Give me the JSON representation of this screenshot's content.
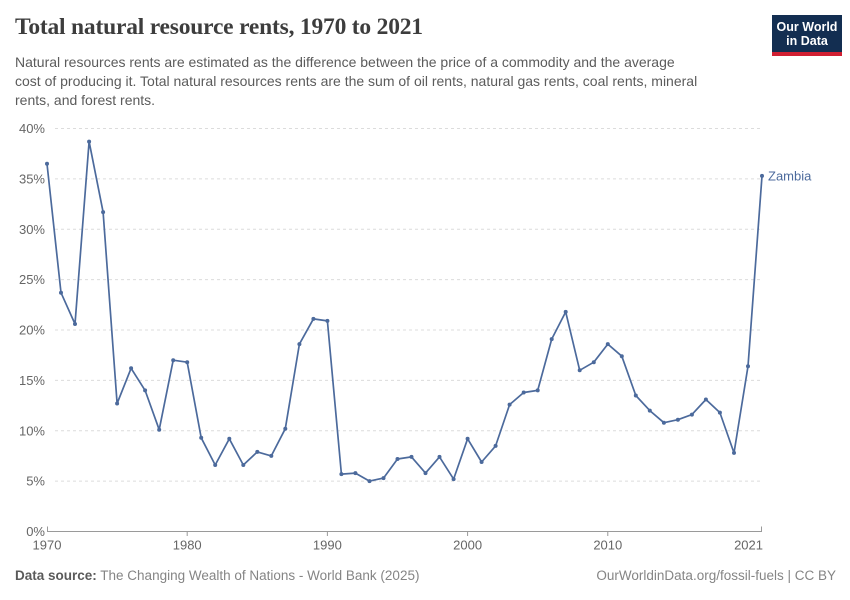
{
  "header": {
    "title": "Total natural resource rents, 1970 to 2021",
    "subtitle": "Natural resources rents are estimated as the difference between the price of a commodity and the average cost of producing it. Total natural resources rents are the sum of oil rents, natural gas rents, coal rents, mineral rents, and forest rents.",
    "subtitle_lines": [
      "Natural resources rents are estimated as the difference between the price of a commodity and the average",
      "cost of producing it. Total natural resources rents are the sum of oil rents, natural gas rents, coal rents, mineral",
      "rents, and forest rents."
    ]
  },
  "logo": {
    "line1": "Our World",
    "line2": "in Data"
  },
  "chart_data": {
    "type": "line",
    "title": "Total natural resource rents, 1970 to 2021",
    "xlabel": "",
    "ylabel": "",
    "ylim": [
      0,
      40
    ],
    "xlim": [
      1970,
      2021
    ],
    "grid": "horizontal-dashed",
    "legend_position": "end-of-line-label",
    "x": [
      1970,
      1971,
      1972,
      1973,
      1974,
      1975,
      1976,
      1977,
      1978,
      1979,
      1980,
      1981,
      1982,
      1983,
      1984,
      1985,
      1986,
      1987,
      1988,
      1989,
      1990,
      1991,
      1992,
      1993,
      1994,
      1995,
      1996,
      1997,
      1998,
      1999,
      2000,
      2001,
      2002,
      2003,
      2004,
      2005,
      2006,
      2007,
      2008,
      2009,
      2010,
      2011,
      2012,
      2013,
      2014,
      2015,
      2016,
      2017,
      2018,
      2019,
      2020,
      2021
    ],
    "series": [
      {
        "name": "Zambia",
        "color": "#4c6a9c",
        "unit": "%",
        "values": [
          36.5,
          23.7,
          20.6,
          38.7,
          31.7,
          12.7,
          16.2,
          14.0,
          10.1,
          17.0,
          16.8,
          9.3,
          6.6,
          9.2,
          6.6,
          7.9,
          7.5,
          10.2,
          18.6,
          21.1,
          20.9,
          5.7,
          5.8,
          5.0,
          5.3,
          7.2,
          7.4,
          5.8,
          7.4,
          5.2,
          9.2,
          6.9,
          8.5,
          12.6,
          13.8,
          14.0,
          19.1,
          21.8,
          16.0,
          16.8,
          18.6,
          17.4,
          13.5,
          12.0,
          10.8,
          11.1,
          11.6,
          13.1,
          11.8,
          7.8,
          16.4,
          35.3
        ]
      }
    ],
    "yticks": [
      {
        "value": 0,
        "label": "0%"
      },
      {
        "value": 5,
        "label": "5%"
      },
      {
        "value": 10,
        "label": "10%"
      },
      {
        "value": 15,
        "label": "15%"
      },
      {
        "value": 20,
        "label": "20%"
      },
      {
        "value": 25,
        "label": "25%"
      },
      {
        "value": 30,
        "label": "30%"
      },
      {
        "value": 35,
        "label": "35%"
      },
      {
        "value": 40,
        "label": "40%"
      }
    ],
    "xticks": [
      {
        "value": 1970,
        "label": "1970"
      },
      {
        "value": 1980,
        "label": "1980"
      },
      {
        "value": 1990,
        "label": "1990"
      },
      {
        "value": 2000,
        "label": "2000"
      },
      {
        "value": 2010,
        "label": "2010"
      },
      {
        "value": 2021,
        "label": "2021"
      }
    ]
  },
  "colors": {
    "line": "#4c6a9c",
    "grid": "#dcdcdc",
    "axis": "#9a9a9a",
    "tick_text": "#666666",
    "logo_bg": "#132e51",
    "logo_stripe": "#d11f32"
  },
  "footer": {
    "data_source_label": "Data source:",
    "data_source_value": " The Changing Wealth of Nations - World Bank (2025)",
    "credit": "OurWorldinData.org/fossil-fuels | CC BY"
  }
}
